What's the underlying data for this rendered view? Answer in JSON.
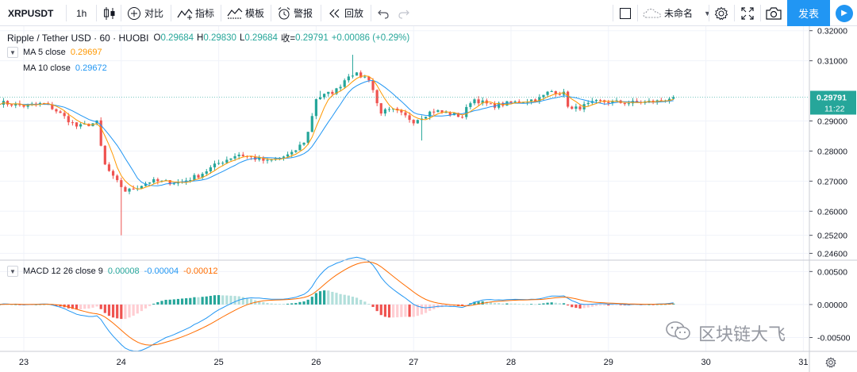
{
  "toolbar": {
    "symbol": "XRPUSDT",
    "interval": "1h",
    "compare_label": "对比",
    "indicators_label": "指标",
    "templates_label": "模板",
    "alert_label": "警报",
    "replay_label": "回放",
    "layout_name": "未命名",
    "publish_label": "发表",
    "icons": {
      "candles": "candlestick-icon",
      "compare": "plus-circle-icon",
      "indicators": "indicator-icon",
      "templates": "template-icon",
      "alert": "alarm-clock-icon",
      "replay": "rewind-icon",
      "undo": "undo-icon",
      "redo": "redo-icon",
      "fullscreen_checkbox": "square-icon",
      "cloud": "cloud-icon",
      "settings": "gear-icon",
      "fullscreen": "expand-icon",
      "snapshot": "camera-icon",
      "play": "play-icon"
    }
  },
  "price_legend": {
    "title": "Ripple / Tether USD · 60 · HUOBI",
    "open_label": "O",
    "open": "0.29684",
    "high_label": "H",
    "high": "0.29830",
    "low_label": "L",
    "low": "0.29684",
    "close_label": "收=",
    "close": "0.29791",
    "change": "+0.00086 (+0.29%)",
    "ma5_label": "MA  5 close",
    "ma5_value": "0.29697",
    "ma10_label": "MA  10 close",
    "ma10_value": "0.29672"
  },
  "macd_legend": {
    "label": "MACD 12 26 close 9",
    "histogram": "0.00008",
    "macd": "-0.00004",
    "signal": "-0.00012"
  },
  "price_badge": {
    "price": "0.29791",
    "countdown": "11:22"
  },
  "watermark": "区块链大飞",
  "colors": {
    "up": "#26a69a",
    "down": "#ef5350",
    "ma5": "#ff9800",
    "ma10": "#2196f3",
    "macd_line": "#2196f3",
    "signal_line": "#ff6d00",
    "hist_up_strong": "#26a69a",
    "hist_up_weak": "#b2dfdb",
    "hist_down_strong": "#ef5350",
    "hist_down_weak": "#ffcdd2",
    "accent": "#2196f3"
  },
  "chart_data": [
    {
      "type": "candlestick",
      "title": "Ripple / Tether USD · 60 · HUOBI",
      "x_ticks": [
        "23",
        "24",
        "25",
        "26",
        "27",
        "28",
        "29",
        "30",
        "31"
      ],
      "y_ticks": [
        "0.32000",
        "0.31000",
        "0.29000",
        "0.28000",
        "0.27000",
        "0.26000",
        "0.25200",
        "0.24600"
      ],
      "ylim": [
        0.244,
        0.3215
      ],
      "grid": true,
      "series": [
        {
          "name": "MA 5 close",
          "color": "#ff9800"
        },
        {
          "name": "MA 10 close",
          "color": "#2196f3"
        }
      ],
      "anchors": [
        {
          "day": 22.75,
          "close": 0.2962
        },
        {
          "day": 23.0,
          "close": 0.295
        },
        {
          "day": 23.2,
          "close": 0.2958
        },
        {
          "day": 23.3,
          "close": 0.2942
        },
        {
          "day": 23.55,
          "close": 0.288
        },
        {
          "day": 23.75,
          "close": 0.2895
        },
        {
          "day": 23.82,
          "close": 0.276
        },
        {
          "day": 23.92,
          "close": 0.271
        },
        {
          "day": 24.05,
          "close": 0.2665
        },
        {
          "day": 24.3,
          "close": 0.27
        },
        {
          "day": 24.6,
          "close": 0.2695
        },
        {
          "day": 24.8,
          "close": 0.272
        },
        {
          "day": 25.0,
          "close": 0.276
        },
        {
          "day": 25.2,
          "close": 0.279
        },
        {
          "day": 25.5,
          "close": 0.2765
        },
        {
          "day": 25.75,
          "close": 0.279
        },
        {
          "day": 25.9,
          "close": 0.284
        },
        {
          "day": 26.0,
          "close": 0.2975
        },
        {
          "day": 26.2,
          "close": 0.3
        },
        {
          "day": 26.35,
          "close": 0.306
        },
        {
          "day": 26.55,
          "close": 0.304
        },
        {
          "day": 26.65,
          "close": 0.293
        },
        {
          "day": 26.8,
          "close": 0.2935
        },
        {
          "day": 27.0,
          "close": 0.29
        },
        {
          "day": 27.2,
          "close": 0.2935
        },
        {
          "day": 27.5,
          "close": 0.2915
        },
        {
          "day": 27.6,
          "close": 0.2975
        },
        {
          "day": 27.8,
          "close": 0.295
        },
        {
          "day": 28.1,
          "close": 0.2965
        },
        {
          "day": 28.3,
          "close": 0.2975
        },
        {
          "day": 28.4,
          "close": 0.3
        },
        {
          "day": 28.55,
          "close": 0.299
        },
        {
          "day": 28.6,
          "close": 0.2935
        },
        {
          "day": 28.9,
          "close": 0.2965
        },
        {
          "day": 29.2,
          "close": 0.296
        },
        {
          "day": 29.5,
          "close": 0.2965
        },
        {
          "day": 29.65,
          "close": 0.2979
        }
      ],
      "wicks": [
        {
          "day": 23.98,
          "low": 0.252
        },
        {
          "day": 26.05,
          "high": 0.3
        },
        {
          "day": 26.38,
          "high": 0.312
        },
        {
          "day": 27.1,
          "low": 0.2835
        }
      ],
      "last_price": 0.29791
    },
    {
      "type": "macd",
      "title": "MACD 12 26 close 9",
      "y_ticks": [
        "0.00500",
        "0.00000",
        "-0.00500"
      ],
      "ylim": [
        -0.0071,
        0.0066
      ],
      "x_ticks": [
        "23",
        "24",
        "25",
        "26",
        "27",
        "28",
        "29",
        "30",
        "31"
      ]
    }
  ]
}
